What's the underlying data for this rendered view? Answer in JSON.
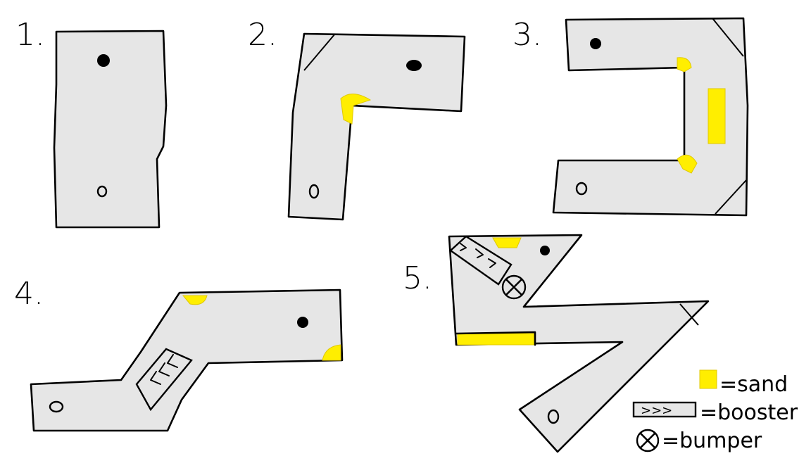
{
  "holes": [
    {
      "number": "1."
    },
    {
      "number": "2."
    },
    {
      "number": "3."
    },
    {
      "number": "4."
    },
    {
      "number": "5."
    }
  ],
  "legend": {
    "sand": "=sand",
    "booster": "=booster",
    "bumper": "=bumper",
    "booster_symbol": ">>>"
  },
  "colors": {
    "course_fill": "#e6e6e6",
    "sand": "#ffee00",
    "outline": "#000000"
  }
}
